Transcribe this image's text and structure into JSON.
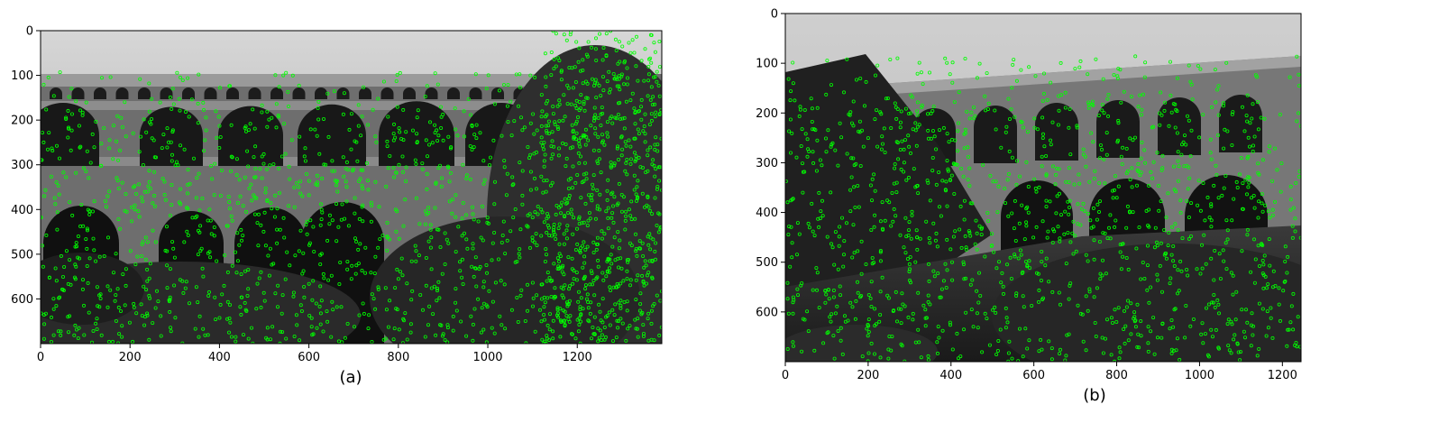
{
  "figure": {
    "panels": [
      {
        "caption": "(a)",
        "xticks": [
          "0",
          "200",
          "400",
          "600",
          "800",
          "1000",
          "1200"
        ],
        "yticks": [
          "0",
          "100",
          "200",
          "300",
          "400",
          "500",
          "600"
        ],
        "xlim": [
          0,
          1389
        ],
        "ylim": [
          0,
          700
        ],
        "xtick_values": [
          0,
          200,
          400,
          600,
          800,
          1000,
          1200
        ],
        "ytick_values": [
          0,
          100,
          200,
          300,
          400,
          500,
          600
        ],
        "keypoint_color": "#00ff00"
      },
      {
        "caption": "(b)",
        "xticks": [
          "0",
          "200",
          "400",
          "600",
          "800",
          "1000",
          "1200"
        ],
        "yticks": [
          "0",
          "100",
          "200",
          "300",
          "400",
          "500",
          "600"
        ],
        "xlim": [
          0,
          1245
        ],
        "ylim": [
          0,
          700
        ],
        "xtick_values": [
          0,
          200,
          400,
          600,
          800,
          1000,
          1200
        ],
        "ytick_values": [
          0,
          100,
          200,
          300,
          400,
          500,
          600
        ],
        "keypoint_color": "#00ff00"
      }
    ]
  }
}
